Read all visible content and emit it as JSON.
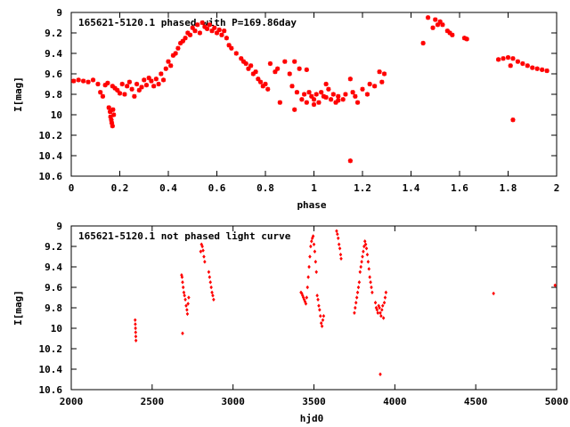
{
  "colors": {
    "points": "#ff0000",
    "frame": "#000000",
    "background": "#ffffff"
  },
  "chart_data": [
    {
      "type": "scatter",
      "title": "165621-5120.1 phased with P=169.86day",
      "xlabel": "phase",
      "ylabel": "I[mag]",
      "xlim": [
        0,
        2
      ],
      "ylim": [
        9,
        10.6
      ],
      "y_inverted": true,
      "grid": false,
      "xticks": [
        "0",
        "0.2",
        "0.4",
        "0.6",
        "0.8",
        "1",
        "1.2",
        "1.4",
        "1.6",
        "1.8",
        "2"
      ],
      "yticks": [
        "9",
        "9.2",
        "9.4",
        "9.6",
        "9.8",
        "10",
        "10.2",
        "10.4",
        "10.6"
      ],
      "points": [
        [
          0.01,
          9.67
        ],
        [
          0.03,
          9.66
        ],
        [
          0.05,
          9.67
        ],
        [
          0.07,
          9.68
        ],
        [
          0.09,
          9.66
        ],
        [
          0.11,
          9.7
        ],
        [
          0.12,
          9.78
        ],
        [
          0.13,
          9.82
        ],
        [
          0.14,
          9.71
        ],
        [
          0.15,
          9.69
        ],
        [
          0.155,
          9.93
        ],
        [
          0.16,
          9.97
        ],
        [
          0.162,
          10.02
        ],
        [
          0.165,
          10.05
        ],
        [
          0.167,
          10.08
        ],
        [
          0.17,
          10.11
        ],
        [
          0.172,
          9.95
        ],
        [
          0.175,
          10.0
        ],
        [
          0.17,
          9.72
        ],
        [
          0.18,
          9.74
        ],
        [
          0.19,
          9.76
        ],
        [
          0.2,
          9.79
        ],
        [
          0.21,
          9.7
        ],
        [
          0.22,
          9.8
        ],
        [
          0.23,
          9.72
        ],
        [
          0.24,
          9.68
        ],
        [
          0.25,
          9.75
        ],
        [
          0.26,
          9.82
        ],
        [
          0.27,
          9.7
        ],
        [
          0.28,
          9.76
        ],
        [
          0.29,
          9.73
        ],
        [
          0.3,
          9.66
        ],
        [
          0.31,
          9.71
        ],
        [
          0.32,
          9.64
        ],
        [
          0.33,
          9.67
        ],
        [
          0.34,
          9.72
        ],
        [
          0.35,
          9.65
        ],
        [
          0.36,
          9.7
        ],
        [
          0.37,
          9.6
        ],
        [
          0.38,
          9.66
        ],
        [
          0.39,
          9.55
        ],
        [
          0.4,
          9.48
        ],
        [
          0.41,
          9.52
        ],
        [
          0.42,
          9.42
        ],
        [
          0.43,
          9.4
        ],
        [
          0.44,
          9.35
        ],
        [
          0.45,
          9.3
        ],
        [
          0.46,
          9.28
        ],
        [
          0.47,
          9.25
        ],
        [
          0.48,
          9.2
        ],
        [
          0.49,
          9.22
        ],
        [
          0.5,
          9.15
        ],
        [
          0.51,
          9.18
        ],
        [
          0.52,
          9.12
        ],
        [
          0.53,
          9.2
        ],
        [
          0.54,
          9.1
        ],
        [
          0.55,
          9.14
        ],
        [
          0.56,
          9.16
        ],
        [
          0.57,
          9.12
        ],
        [
          0.58,
          9.18
        ],
        [
          0.59,
          9.15
        ],
        [
          0.6,
          9.2
        ],
        [
          0.61,
          9.17
        ],
        [
          0.62,
          9.22
        ],
        [
          0.63,
          9.18
        ],
        [
          0.64,
          9.25
        ],
        [
          0.65,
          9.32
        ],
        [
          0.66,
          9.35
        ],
        [
          0.68,
          9.4
        ],
        [
          0.7,
          9.45
        ],
        [
          0.71,
          9.48
        ],
        [
          0.72,
          9.5
        ],
        [
          0.73,
          9.55
        ],
        [
          0.74,
          9.52
        ],
        [
          0.75,
          9.6
        ],
        [
          0.76,
          9.58
        ],
        [
          0.77,
          9.65
        ],
        [
          0.78,
          9.68
        ],
        [
          0.79,
          9.72
        ],
        [
          0.8,
          9.7
        ],
        [
          0.81,
          9.75
        ],
        [
          0.82,
          9.5
        ],
        [
          0.85,
          9.55
        ],
        [
          0.86,
          9.88
        ],
        [
          0.88,
          9.48
        ],
        [
          0.9,
          9.6
        ],
        [
          0.91,
          9.72
        ],
        [
          0.92,
          9.95
        ],
        [
          0.93,
          9.78
        ],
        [
          0.94,
          9.55
        ],
        [
          0.95,
          9.85
        ],
        [
          0.96,
          9.8
        ],
        [
          0.97,
          9.88
        ],
        [
          0.98,
          9.78
        ],
        [
          0.99,
          9.82
        ],
        [
          1.0,
          9.85
        ],
        [
          1.01,
          9.8
        ],
        [
          1.02,
          9.88
        ],
        [
          1.03,
          9.78
        ],
        [
          1.04,
          9.82
        ],
        [
          1.05,
          9.7
        ],
        [
          1.06,
          9.75
        ],
        [
          1.07,
          9.85
        ],
        [
          1.08,
          9.8
        ],
        [
          1.09,
          9.88
        ],
        [
          1.1,
          9.82
        ],
        [
          1.12,
          9.85
        ],
        [
          1.13,
          9.8
        ],
        [
          1.15,
          9.65
        ],
        [
          1.16,
          9.78
        ],
        [
          1.17,
          9.82
        ],
        [
          1.18,
          9.88
        ],
        [
          1.2,
          9.75
        ],
        [
          1.22,
          9.8
        ],
        [
          1.23,
          9.7
        ],
        [
          1.25,
          9.72
        ],
        [
          1.27,
          9.58
        ],
        [
          1.28,
          9.68
        ],
        [
          1.29,
          9.6
        ],
        [
          1.15,
          10.45
        ],
        [
          0.84,
          9.58
        ],
        [
          0.92,
          9.48
        ],
        [
          0.97,
          9.56
        ],
        [
          1.0,
          9.9
        ],
        [
          1.05,
          9.83
        ],
        [
          1.1,
          9.86
        ],
        [
          1.45,
          9.3
        ],
        [
          1.47,
          9.05
        ],
        [
          1.49,
          9.15
        ],
        [
          1.5,
          9.07
        ],
        [
          1.51,
          9.12
        ],
        [
          1.52,
          9.09
        ],
        [
          1.53,
          9.12
        ],
        [
          1.55,
          9.18
        ],
        [
          1.56,
          9.2
        ],
        [
          1.57,
          9.22
        ],
        [
          1.62,
          9.25
        ],
        [
          1.63,
          9.26
        ],
        [
          1.76,
          9.46
        ],
        [
          1.78,
          9.45
        ],
        [
          1.8,
          9.44
        ],
        [
          1.81,
          9.52
        ],
        [
          1.82,
          9.45
        ],
        [
          1.84,
          9.48
        ],
        [
          1.86,
          9.5
        ],
        [
          1.88,
          9.52
        ],
        [
          1.9,
          9.54
        ],
        [
          1.92,
          9.55
        ],
        [
          1.94,
          9.56
        ],
        [
          1.96,
          9.57
        ],
        [
          1.82,
          10.05
        ]
      ]
    },
    {
      "type": "scatter",
      "title": "165621-5120.1 not phased light curve",
      "xlabel": "hjd0",
      "ylabel": "I[mag]",
      "xlim": [
        2000,
        5000
      ],
      "ylim": [
        9,
        10.6
      ],
      "y_inverted": true,
      "grid": false,
      "xticks": [
        "2000",
        "2500",
        "3000",
        "3500",
        "4000",
        "4500",
        "5000"
      ],
      "yticks": [
        "9",
        "9.2",
        "9.4",
        "9.6",
        "9.8",
        "10",
        "10.2",
        "10.4",
        "10.6"
      ],
      "points": [
        [
          2395,
          9.92
        ],
        [
          2396,
          9.96
        ],
        [
          2397,
          10.0
        ],
        [
          2398,
          10.04
        ],
        [
          2399,
          10.08
        ],
        [
          2400,
          10.12
        ],
        [
          2682,
          9.48
        ],
        [
          2685,
          9.5
        ],
        [
          2688,
          9.55
        ],
        [
          2692,
          9.6
        ],
        [
          2696,
          9.65
        ],
        [
          2700,
          9.68
        ],
        [
          2705,
          9.72
        ],
        [
          2710,
          9.78
        ],
        [
          2715,
          9.82
        ],
        [
          2718,
          9.86
        ],
        [
          2722,
          9.76
        ],
        [
          2726,
          9.7
        ],
        [
          2688,
          10.05
        ],
        [
          2800,
          9.25
        ],
        [
          2805,
          9.18
        ],
        [
          2810,
          9.2
        ],
        [
          2815,
          9.24
        ],
        [
          2820,
          9.3
        ],
        [
          2825,
          9.35
        ],
        [
          2850,
          9.45
        ],
        [
          2855,
          9.5
        ],
        [
          2860,
          9.55
        ],
        [
          2865,
          9.6
        ],
        [
          2870,
          9.65
        ],
        [
          2875,
          9.68
        ],
        [
          2880,
          9.72
        ],
        [
          3420,
          9.65
        ],
        [
          3425,
          9.66
        ],
        [
          3430,
          9.68
        ],
        [
          3435,
          9.7
        ],
        [
          3440,
          9.72
        ],
        [
          3445,
          9.74
        ],
        [
          3450,
          9.76
        ],
        [
          3455,
          9.7
        ],
        [
          3460,
          9.6
        ],
        [
          3465,
          9.5
        ],
        [
          3470,
          9.4
        ],
        [
          3475,
          9.3
        ],
        [
          3480,
          9.2
        ],
        [
          3485,
          9.15
        ],
        [
          3490,
          9.12
        ],
        [
          3495,
          9.1
        ],
        [
          3500,
          9.18
        ],
        [
          3505,
          9.25
        ],
        [
          3510,
          9.35
        ],
        [
          3515,
          9.45
        ],
        [
          3520,
          9.68
        ],
        [
          3525,
          9.72
        ],
        [
          3530,
          9.78
        ],
        [
          3535,
          9.82
        ],
        [
          3540,
          9.88
        ],
        [
          3545,
          9.95
        ],
        [
          3550,
          9.98
        ],
        [
          3555,
          9.92
        ],
        [
          3560,
          9.88
        ],
        [
          3640,
          9.05
        ],
        [
          3645,
          9.08
        ],
        [
          3650,
          9.12
        ],
        [
          3655,
          9.18
        ],
        [
          3660,
          9.22
        ],
        [
          3665,
          9.28
        ],
        [
          3668,
          9.32
        ],
        [
          3750,
          9.85
        ],
        [
          3755,
          9.8
        ],
        [
          3760,
          9.75
        ],
        [
          3765,
          9.7
        ],
        [
          3770,
          9.65
        ],
        [
          3775,
          9.6
        ],
        [
          3780,
          9.55
        ],
        [
          3785,
          9.45
        ],
        [
          3790,
          9.4
        ],
        [
          3795,
          9.35
        ],
        [
          3800,
          9.3
        ],
        [
          3805,
          9.25
        ],
        [
          3810,
          9.2
        ],
        [
          3815,
          9.15
        ],
        [
          3820,
          9.18
        ],
        [
          3825,
          9.22
        ],
        [
          3830,
          9.28
        ],
        [
          3835,
          9.35
        ],
        [
          3840,
          9.42
        ],
        [
          3845,
          9.5
        ],
        [
          3850,
          9.55
        ],
        [
          3855,
          9.6
        ],
        [
          3860,
          9.65
        ],
        [
          3880,
          9.75
        ],
        [
          3885,
          9.8
        ],
        [
          3890,
          9.82
        ],
        [
          3895,
          9.85
        ],
        [
          3900,
          9.78
        ],
        [
          3905,
          9.8
        ],
        [
          3910,
          9.85
        ],
        [
          3915,
          9.88
        ],
        [
          3920,
          9.82
        ],
        [
          3925,
          9.78
        ],
        [
          3930,
          9.9
        ],
        [
          3935,
          9.75
        ],
        [
          3940,
          9.7
        ],
        [
          3945,
          9.65
        ],
        [
          3910,
          10.45
        ],
        [
          4610,
          9.66
        ],
        [
          4990,
          9.58
        ]
      ]
    }
  ]
}
